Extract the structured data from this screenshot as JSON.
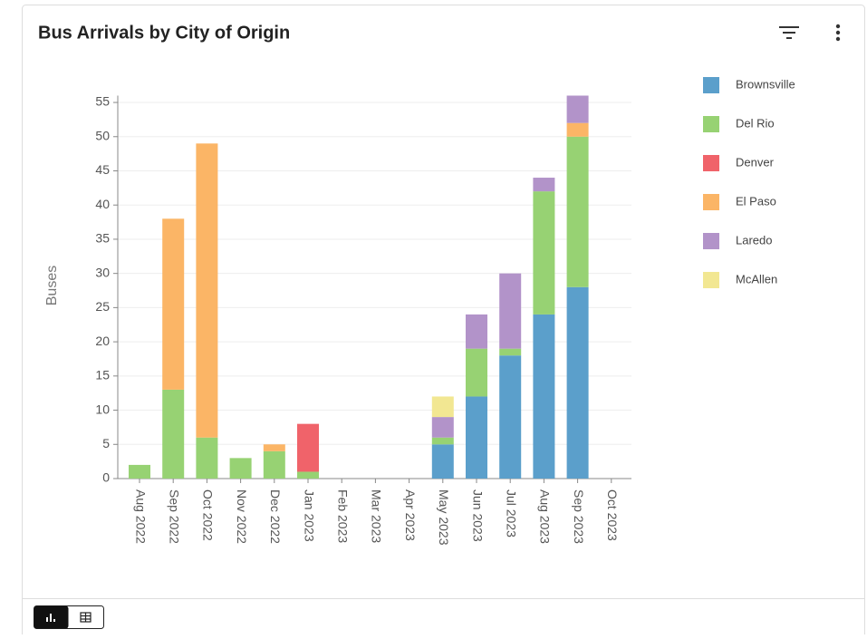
{
  "chart_data": {
    "type": "bar",
    "stacked": true,
    "title": "Bus Arrivals by City of Origin",
    "y_label": "Buses",
    "categories": [
      "Aug 2022",
      "Sep 2022",
      "Oct 2022",
      "Nov 2022",
      "Dec 2022",
      "Jan 2023",
      "Feb 2023",
      "Mar 2023",
      "Apr 2023",
      "May 2023",
      "Jun 2023",
      "Jul 2023",
      "Aug 2023",
      "Sep 2023",
      "Oct 2023"
    ],
    "series": [
      {
        "name": "Brownsville",
        "color": "#5b9fcb",
        "values": [
          0,
          0,
          0,
          0,
          0,
          0,
          0,
          0,
          0,
          5,
          12,
          18,
          24,
          28,
          0
        ]
      },
      {
        "name": "Del Rio",
        "color": "#97d273",
        "values": [
          2,
          13,
          6,
          3,
          4,
          1,
          0,
          0,
          0,
          1,
          7,
          1,
          18,
          22,
          0
        ]
      },
      {
        "name": "Denver",
        "color": "#f0636a",
        "values": [
          0,
          0,
          0,
          0,
          0,
          7,
          0,
          0,
          0,
          0,
          0,
          0,
          0,
          0,
          0
        ]
      },
      {
        "name": "El Paso",
        "color": "#fbb566",
        "values": [
          0,
          25,
          43,
          0,
          1,
          0,
          0,
          0,
          0,
          0,
          0,
          0,
          0,
          2,
          0
        ]
      },
      {
        "name": "Laredo",
        "color": "#b293c9",
        "values": [
          0,
          0,
          0,
          0,
          0,
          0,
          0,
          0,
          0,
          3,
          5,
          11,
          2,
          4,
          0
        ]
      },
      {
        "name": "McAllen",
        "color": "#f2e792",
        "values": [
          0,
          0,
          0,
          0,
          0,
          0,
          0,
          0,
          0,
          3,
          0,
          0,
          0,
          0,
          0
        ]
      }
    ],
    "ylim": [
      0,
      56
    ],
    "yticks": [
      0,
      5,
      10,
      15,
      20,
      25,
      30,
      35,
      40,
      45,
      50,
      55
    ],
    "grid": true,
    "legend": "right"
  }
}
